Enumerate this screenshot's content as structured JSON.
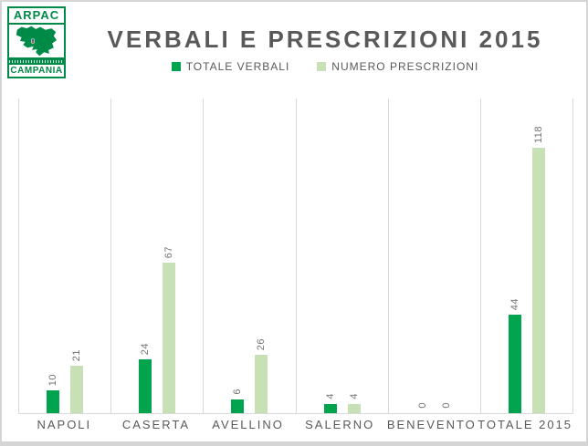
{
  "logo": {
    "top_text": "ARPAC",
    "bottom_text": "CAMPANIA"
  },
  "header": {
    "title": "VERBALI E PRESCRIZIONI 2015"
  },
  "legend": {
    "items": [
      {
        "label": "TOTALE VERBALI",
        "color": "#00a44f"
      },
      {
        "label": "NUMERO PRESCRIZIONI",
        "color": "#c7e0b5"
      }
    ]
  },
  "chart_data": {
    "type": "bar",
    "title": "VERBALI E PRESCRIZIONI 2015",
    "categories": [
      "NAPOLI",
      "CASERTA",
      "AVELLINO",
      "SALERNO",
      "BENEVENTO",
      "TOTALE 2015"
    ],
    "series": [
      {
        "name": "TOTALE VERBALI",
        "color": "#00a44f",
        "values": [
          10,
          24,
          6,
          4,
          0,
          44
        ]
      },
      {
        "name": "NUMERO PRESCRIZIONI",
        "color": "#c7e0b5",
        "values": [
          21,
          67,
          26,
          4,
          0,
          118
        ]
      }
    ],
    "xlabel": "",
    "ylabel": "",
    "ylim": [
      0,
      140
    ],
    "y_axis_labels_visible": false,
    "grid": "vertical category separators only",
    "legend_position": "top",
    "data_labels": "values above bars, rotated 90 degrees (read bottom-to-top)",
    "colors": {
      "grid_line": "#d9d9d9",
      "title_text": "#595959",
      "axis_text": "#595959",
      "data_label_text": "#737373",
      "frame_border": "#d5d5d5",
      "logo_green": "#008a47",
      "background": "#ffffff"
    }
  }
}
